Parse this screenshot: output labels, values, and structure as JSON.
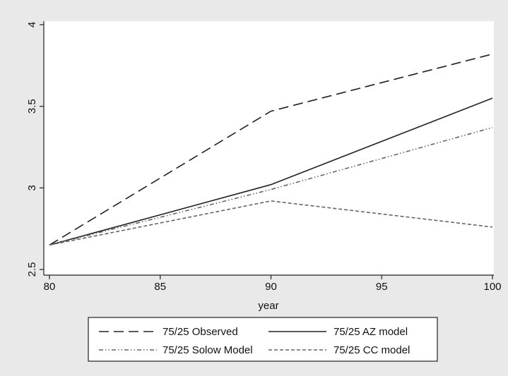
{
  "chart_data": {
    "type": "line",
    "xlabel": "year",
    "ylabel": "",
    "xlim": [
      80,
      100
    ],
    "ylim": [
      2.5,
      4
    ],
    "x_ticks": [
      80,
      85,
      90,
      95,
      100
    ],
    "x_tick_labels": [
      "80",
      "85",
      "90",
      "95",
      "100"
    ],
    "y_ticks": [
      2.5,
      3,
      3.5,
      4
    ],
    "y_tick_labels": [
      "2.5",
      "3",
      "3.5",
      "4"
    ],
    "grid": false,
    "legend_position": "bottom",
    "x": [
      80,
      90,
      100
    ],
    "series": [
      {
        "name": "75/25 Observed",
        "values": [
          2.65,
          3.47,
          3.82
        ],
        "dash": "long-dash",
        "color": "#222222"
      },
      {
        "name": "75/25 AZ model",
        "values": [
          2.65,
          3.02,
          3.55
        ],
        "dash": "solid",
        "color": "#222222"
      },
      {
        "name": "75/25 Solow Model",
        "values": [
          2.65,
          2.99,
          3.37
        ],
        "dash": "dash-dot-dot",
        "color": "#666666"
      },
      {
        "name": "75/25 CC model",
        "values": [
          2.65,
          2.92,
          2.76
        ],
        "dash": "short-dash",
        "color": "#666666"
      }
    ]
  }
}
